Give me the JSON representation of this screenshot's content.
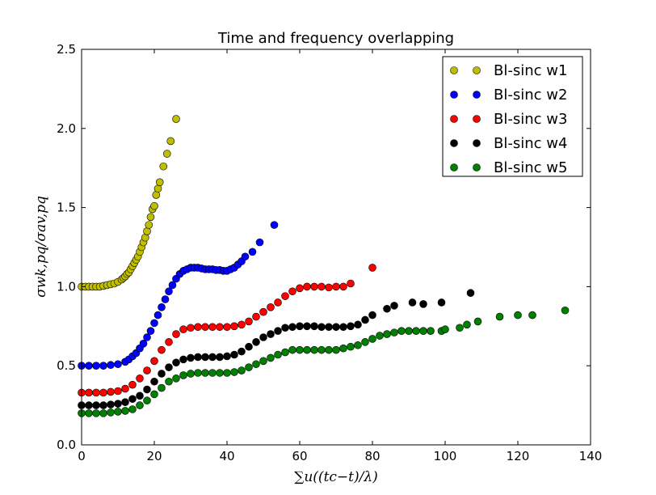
{
  "chart_data": {
    "type": "scatter",
    "title": "Time and frequency overlapping",
    "xlabel": "∑u((tc−t)/λ)",
    "ylabel": "σwk,pq/σav,pq",
    "xlim": [
      0,
      140
    ],
    "ylim": [
      0,
      2.5
    ],
    "xticks": [
      "0",
      "20",
      "40",
      "60",
      "80",
      "100",
      "120",
      "140"
    ],
    "yticks": [
      "0.0",
      "0.5",
      "1.0",
      "1.5",
      "2.0",
      "2.5"
    ],
    "grid": false,
    "legend_position": "top-right",
    "series": [
      {
        "name": "Bl-sinc w1",
        "color": "#bfbf00",
        "x": [
          0,
          1,
          2,
          3,
          4,
          5,
          6,
          7,
          8,
          9,
          10,
          11,
          11.5,
          12,
          12.5,
          13,
          13.5,
          14,
          14.5,
          15,
          15.5,
          16,
          16.5,
          17,
          17.5,
          18,
          18.5,
          19,
          19.5,
          20,
          20.5,
          21,
          21.5,
          22.5,
          23.5,
          24.5,
          26
        ],
        "y": [
          1.0,
          1.0,
          1.0,
          1.0,
          1.0,
          1.0,
          1.005,
          1.01,
          1.015,
          1.02,
          1.03,
          1.045,
          1.055,
          1.065,
          1.08,
          1.09,
          1.11,
          1.13,
          1.15,
          1.17,
          1.19,
          1.22,
          1.25,
          1.28,
          1.31,
          1.35,
          1.39,
          1.44,
          1.49,
          1.51,
          1.58,
          1.62,
          1.66,
          1.76,
          1.84,
          1.92,
          2.06
        ]
      },
      {
        "name": "Bl-sinc w2",
        "color": "#0000ff",
        "x": [
          0,
          2,
          4,
          6,
          8,
          10,
          12,
          13,
          14,
          15,
          16,
          17,
          18,
          19,
          20,
          21,
          22,
          23,
          24,
          25,
          26,
          27,
          28,
          29,
          30,
          31,
          32,
          33,
          34,
          35,
          36,
          37,
          38,
          39,
          40,
          41,
          42,
          43,
          44,
          45,
          47,
          49,
          53
        ],
        "y": [
          0.5,
          0.5,
          0.5,
          0.5,
          0.505,
          0.51,
          0.525,
          0.54,
          0.56,
          0.58,
          0.61,
          0.64,
          0.68,
          0.72,
          0.77,
          0.82,
          0.87,
          0.92,
          0.97,
          1.01,
          1.05,
          1.08,
          1.1,
          1.11,
          1.12,
          1.12,
          1.12,
          1.115,
          1.11,
          1.11,
          1.11,
          1.105,
          1.105,
          1.1,
          1.1,
          1.11,
          1.12,
          1.14,
          1.16,
          1.19,
          1.22,
          1.28,
          1.39
        ]
      },
      {
        "name": "Bl-sinc w3",
        "color": "#ff0000",
        "x": [
          0,
          2,
          4,
          6,
          8,
          10,
          12,
          14,
          16,
          18,
          20,
          22,
          24,
          26,
          28,
          30,
          32,
          34,
          36,
          38,
          40,
          42,
          44,
          46,
          48,
          50,
          52,
          54,
          56,
          58,
          60,
          62,
          64,
          66,
          68,
          70,
          72,
          74,
          80
        ],
        "y": [
          0.33,
          0.33,
          0.33,
          0.33,
          0.335,
          0.34,
          0.355,
          0.38,
          0.42,
          0.47,
          0.53,
          0.6,
          0.65,
          0.7,
          0.73,
          0.74,
          0.745,
          0.745,
          0.745,
          0.745,
          0.745,
          0.75,
          0.76,
          0.78,
          0.81,
          0.84,
          0.87,
          0.9,
          0.94,
          0.97,
          0.99,
          1.0,
          1.0,
          1.0,
          0.995,
          1.0,
          1.0,
          1.02,
          1.12
        ]
      },
      {
        "name": "Bl-sinc w4",
        "color": "#000000",
        "x": [
          0,
          2,
          4,
          6,
          8,
          10,
          12,
          14,
          16,
          18,
          20,
          22,
          24,
          26,
          28,
          30,
          32,
          34,
          36,
          38,
          40,
          42,
          44,
          46,
          48,
          50,
          52,
          54,
          56,
          58,
          60,
          62,
          64,
          66,
          68,
          70,
          72,
          74,
          76,
          78,
          80,
          84,
          86,
          91,
          94,
          99,
          107
        ],
        "y": [
          0.25,
          0.25,
          0.25,
          0.25,
          0.255,
          0.26,
          0.27,
          0.29,
          0.31,
          0.35,
          0.4,
          0.45,
          0.49,
          0.52,
          0.54,
          0.55,
          0.555,
          0.555,
          0.555,
          0.555,
          0.56,
          0.57,
          0.59,
          0.62,
          0.65,
          0.68,
          0.7,
          0.72,
          0.74,
          0.745,
          0.75,
          0.75,
          0.75,
          0.745,
          0.745,
          0.745,
          0.745,
          0.75,
          0.76,
          0.79,
          0.82,
          0.86,
          0.88,
          0.9,
          0.89,
          0.9,
          0.96
        ]
      },
      {
        "name": "Bl-sinc w5",
        "color": "#008000",
        "x": [
          0,
          2,
          4,
          6,
          8,
          10,
          12,
          14,
          16,
          18,
          20,
          22,
          24,
          26,
          28,
          30,
          32,
          34,
          36,
          38,
          40,
          42,
          44,
          46,
          48,
          50,
          52,
          54,
          56,
          58,
          60,
          62,
          64,
          66,
          68,
          70,
          72,
          74,
          76,
          78,
          80,
          82,
          84,
          86,
          88,
          90,
          92,
          94,
          96,
          99,
          100,
          104,
          106,
          109,
          115,
          120,
          124,
          133
        ],
        "y": [
          0.2,
          0.2,
          0.2,
          0.2,
          0.205,
          0.21,
          0.215,
          0.225,
          0.25,
          0.28,
          0.32,
          0.36,
          0.4,
          0.42,
          0.44,
          0.45,
          0.455,
          0.455,
          0.455,
          0.455,
          0.455,
          0.46,
          0.47,
          0.49,
          0.51,
          0.53,
          0.55,
          0.57,
          0.585,
          0.6,
          0.6,
          0.6,
          0.6,
          0.6,
          0.6,
          0.6,
          0.61,
          0.62,
          0.63,
          0.65,
          0.67,
          0.69,
          0.7,
          0.71,
          0.72,
          0.72,
          0.72,
          0.72,
          0.72,
          0.72,
          0.73,
          0.74,
          0.76,
          0.78,
          0.81,
          0.82,
          0.82,
          0.85
        ]
      }
    ]
  }
}
